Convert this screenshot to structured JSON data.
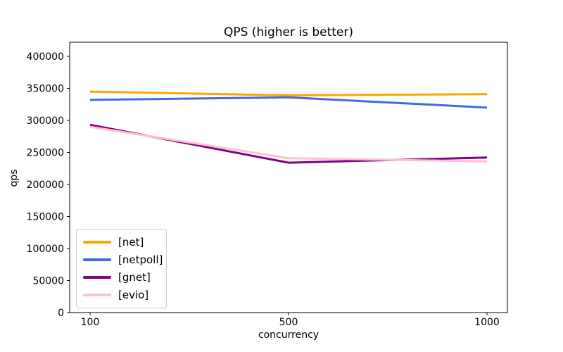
{
  "chart_data": {
    "type": "line",
    "title": "QPS (higher is better)",
    "xlabel": "concurrency",
    "ylabel": "qps",
    "categories": [
      "100",
      "500",
      "1000"
    ],
    "series": [
      {
        "name": "[net]",
        "key": "net",
        "color": "#FFA500",
        "values": [
          345000,
          339000,
          341000
        ]
      },
      {
        "name": "[netpoll]",
        "key": "netpoll",
        "color": "#4169E1",
        "values": [
          332000,
          336000,
          320000
        ]
      },
      {
        "name": "[gnet]",
        "key": "gnet",
        "color": "#800080",
        "values": [
          293000,
          234000,
          242000
        ]
      },
      {
        "name": "[evio]",
        "key": "evio",
        "color": "#FFC0CB",
        "values": [
          290000,
          241000,
          236000
        ]
      }
    ],
    "yticks": [
      0,
      50000,
      100000,
      150000,
      200000,
      250000,
      300000,
      350000,
      400000
    ],
    "ylim": [
      0,
      422000
    ],
    "x_axis_type": "categorical",
    "grid": false,
    "legend_position": "lower-left",
    "axis_color": "#000000",
    "background": "#FFFFFF"
  }
}
